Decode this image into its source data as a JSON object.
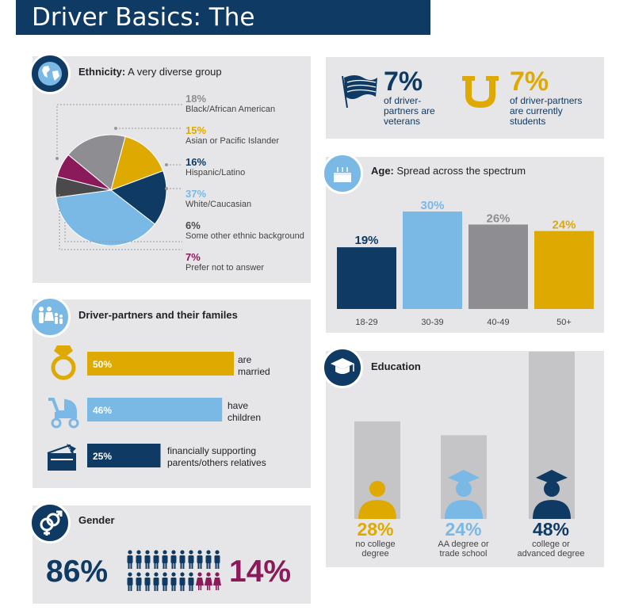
{
  "title": "Driver Basics: The Demographics",
  "colors": {
    "navy": "#0f3a64",
    "lightblue": "#7ab8e6",
    "gold": "#dea900",
    "gray": "#8e8e92",
    "darkgray": "#4a4a4d",
    "maroon": "#8a1a5a"
  },
  "ethnicity": {
    "title_bold": "Ethnicity:",
    "title_rest": " A very diverse group",
    "icon": "globe-icon",
    "items": [
      {
        "pct": "18%",
        "label": "Black/African American",
        "color": "#8e8e92"
      },
      {
        "pct": "15%",
        "label": "Asian or Pacific Islander",
        "color": "#dea900"
      },
      {
        "pct": "16%",
        "label": "Hispanic/Latino",
        "color": "#0f3a64"
      },
      {
        "pct": "37%",
        "label": "White/Caucasian",
        "color": "#7ab8e6"
      },
      {
        "pct": "6%",
        "label": "Some other ethnic background",
        "color": "#4a4a4d"
      },
      {
        "pct": "7%",
        "label": "Prefer not to answer",
        "color": "#8a1a5a"
      }
    ]
  },
  "veterans": {
    "pct": "7%",
    "text": "of driver-partners are veterans",
    "icon": "flag-icon"
  },
  "students": {
    "pct": "7%",
    "text": "of driver-partners are currently students",
    "icon": "university-icon"
  },
  "age": {
    "title_bold": "Age:",
    "title_rest": " Spread across the spectrum",
    "icon": "birthday-cake-icon"
  },
  "families": {
    "title": "Driver-partners and their familes",
    "icon": "family-icon",
    "items": [
      {
        "pct": "50%",
        "text": "are married",
        "icon": "ring-icon"
      },
      {
        "pct": "46%",
        "text": "have children",
        "icon": "stroller-icon"
      },
      {
        "pct": "25%",
        "text": "financially supporting parents/others relatives",
        "icon": "wallet-icon"
      }
    ]
  },
  "gender": {
    "title": "Gender",
    "male_pct": "86%",
    "female_pct": "14%",
    "icon": "gender-icon"
  },
  "education": {
    "title": "Education",
    "icon": "graduation-cap-icon",
    "items": [
      {
        "pct": "28%",
        "label_line1": "no college",
        "label_line2": "degree",
        "color": "#dea900"
      },
      {
        "pct": "24%",
        "label_line1": "AA degree or",
        "label_line2": "trade school",
        "color": "#7ab8e6"
      },
      {
        "pct": "48%",
        "label_line1": "college or",
        "label_line2": "advanced degree",
        "color": "#0f3a64"
      }
    ]
  },
  "chart_data": [
    {
      "type": "pie",
      "title": "Ethnicity: A very diverse group",
      "categories": [
        "Black/African American",
        "Asian or Pacific Islander",
        "Hispanic/Latino",
        "White/Caucasian",
        "Some other ethnic background",
        "Prefer not to answer"
      ],
      "values": [
        18,
        15,
        16,
        37,
        6,
        7
      ]
    },
    {
      "type": "bar",
      "title": "Age: Spread across the spectrum",
      "categories": [
        "18-29",
        "30-39",
        "40-49",
        "50+"
      ],
      "values": [
        19,
        30,
        26,
        24
      ],
      "labels": [
        "19%",
        "30%",
        "26%",
        "24%"
      ],
      "colors": [
        "#0f3a64",
        "#7ab8e6",
        "#8e8e92",
        "#dea900"
      ]
    },
    {
      "type": "bar",
      "title": "Driver-partners and their familes",
      "categories": [
        "are married",
        "have children",
        "financially supporting parents/others relatives"
      ],
      "values": [
        50,
        46,
        25
      ],
      "colors": [
        "#dea900",
        "#7ab8e6",
        "#0f3a64"
      ]
    },
    {
      "type": "bar",
      "title": "Gender",
      "categories": [
        "male",
        "female"
      ],
      "values": [
        86,
        14
      ]
    },
    {
      "type": "bar",
      "title": "Education",
      "categories": [
        "no college degree",
        "AA degree or trade school",
        "college or advanced degree"
      ],
      "values": [
        28,
        24,
        48
      ]
    }
  ]
}
